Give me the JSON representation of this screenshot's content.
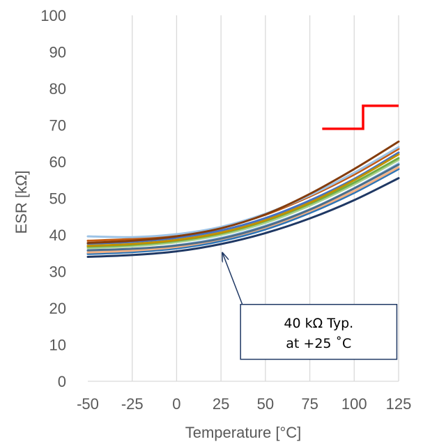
{
  "chart_data": {
    "type": "line",
    "xlabel": "Temperature [°C]",
    "ylabel": "ESR [kΩ]",
    "xlim": [
      -50,
      125
    ],
    "ylim": [
      0,
      100
    ],
    "xticks": [
      -50,
      -25,
      0,
      25,
      50,
      75,
      100,
      125
    ],
    "yticks": [
      0,
      10,
      20,
      30,
      40,
      50,
      60,
      70,
      80,
      90,
      100
    ],
    "x_tick_labels": [
      "-50",
      "-25",
      "0",
      "25",
      "50",
      "75",
      "100",
      "125"
    ],
    "y_tick_labels": [
      "0",
      "10",
      "20",
      "30",
      "40",
      "50",
      "60",
      "70",
      "80",
      "90",
      "100"
    ],
    "grid": "vertical",
    "x": [
      -50,
      -25,
      0,
      25,
      50,
      75,
      100,
      125
    ],
    "series": [
      {
        "color": "#1f3864",
        "values": [
          34.0,
          34.5,
          35.5,
          37.5,
          40.5,
          44.5,
          49.5,
          55.5
        ]
      },
      {
        "color": "#2e75b6",
        "values": [
          34.8,
          35.3,
          36.3,
          38.3,
          41.5,
          46.0,
          51.5,
          58.0
        ]
      },
      {
        "color": "#8fbce6",
        "values": [
          35.6,
          36.1,
          37.2,
          39.2,
          42.5,
          47.0,
          52.8,
          59.5
        ]
      },
      {
        "color": "#f4b183",
        "values": [
          35.2,
          35.7,
          36.7,
          38.8,
          42.0,
          46.5,
          52.0,
          58.5
        ]
      },
      {
        "color": "#a9d18e",
        "values": [
          36.4,
          36.9,
          38.0,
          40.0,
          43.3,
          48.0,
          53.8,
          60.5
        ]
      },
      {
        "color": "#ffd966",
        "values": [
          37.2,
          37.7,
          38.8,
          40.8,
          44.2,
          49.0,
          55.0,
          62.0
        ]
      },
      {
        "color": "#70ad47",
        "values": [
          36.8,
          37.3,
          38.4,
          40.4,
          43.8,
          48.5,
          54.3,
          61.0
        ]
      },
      {
        "color": "#4472c4",
        "values": [
          37.6,
          38.1,
          39.2,
          41.2,
          44.6,
          49.4,
          55.3,
          62.5
        ]
      },
      {
        "color": "#c55a11",
        "values": [
          38.4,
          38.9,
          40.0,
          42.0,
          45.5,
          50.5,
          56.5,
          63.5
        ]
      },
      {
        "color": "#9dc3e6",
        "values": [
          39.6,
          39.4,
          40.2,
          42.2,
          45.8,
          50.8,
          57.0,
          64.0
        ]
      },
      {
        "color": "#843c0c",
        "values": [
          37.8,
          38.4,
          39.6,
          41.8,
          45.6,
          51.2,
          58.0,
          65.5
        ]
      },
      {
        "color": "#bf9000",
        "values": [
          37.0,
          37.5,
          38.6,
          40.6,
          44.0,
          48.8,
          55.0,
          62.0
        ]
      },
      {
        "color": "#4a6d8c",
        "values": [
          35.8,
          36.2,
          37.1,
          39.0,
          42.3,
          46.9,
          52.7,
          59.2
        ]
      }
    ],
    "limit_line": {
      "color": "#ff0000",
      "x": [
        82,
        105,
        105,
        125
      ],
      "values": [
        69,
        69,
        75.3,
        75.3
      ]
    },
    "annotation": {
      "lines": [
        "40 kΩ Typ.",
        "at +25 ˚C"
      ],
      "arrow_to": [
        25,
        35.5
      ],
      "box_x": [
        36,
        124
      ],
      "box_y": [
        6,
        21
      ]
    }
  }
}
